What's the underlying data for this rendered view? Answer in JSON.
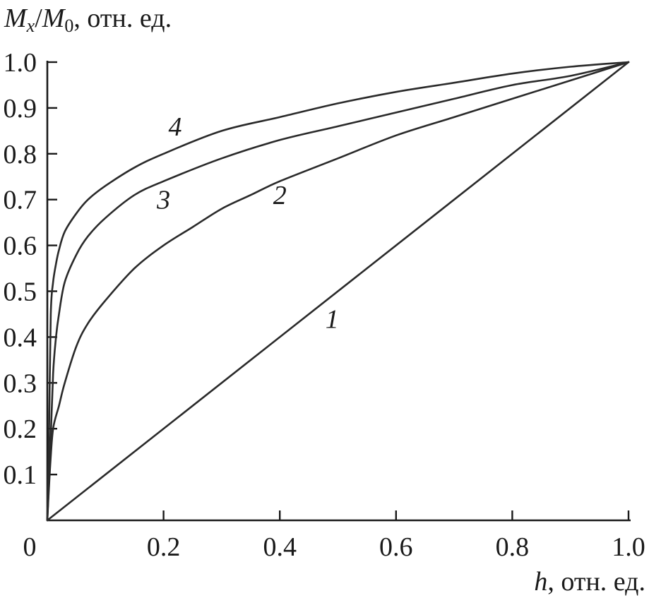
{
  "chart_data": {
    "type": "line",
    "xlabel_var": "h",
    "xlabel_unit": ", отн. ед.",
    "ylabel_var_main": "M",
    "ylabel_var_sub": "x",
    "ylabel_slash": "/",
    "ylabel_var2_main": "M",
    "ylabel_var2_sub": "0",
    "ylabel_unit": ", отн. ед.",
    "xlim": [
      0,
      1.0
    ],
    "ylim": [
      0,
      1.0
    ],
    "x_ticks": [
      {
        "value": 0,
        "label": "0"
      },
      {
        "value": 0.2,
        "label": "0.2"
      },
      {
        "value": 0.4,
        "label": "0.4"
      },
      {
        "value": 0.6,
        "label": "0.6"
      },
      {
        "value": 0.8,
        "label": "0.8"
      },
      {
        "value": 1.0,
        "label": "1.0"
      }
    ],
    "y_ticks": [
      {
        "value": 0.1,
        "label": "0.1"
      },
      {
        "value": 0.2,
        "label": "0.2"
      },
      {
        "value": 0.3,
        "label": "0.3"
      },
      {
        "value": 0.4,
        "label": "0.4"
      },
      {
        "value": 0.5,
        "label": "0.5"
      },
      {
        "value": 0.6,
        "label": "0.6"
      },
      {
        "value": 0.7,
        "label": "0.7"
      },
      {
        "value": 0.8,
        "label": "0.8"
      },
      {
        "value": 0.9,
        "label": "0.9"
      },
      {
        "value": 1.0,
        "label": "1.0"
      }
    ],
    "grid": false,
    "series": [
      {
        "label": "1",
        "label_pos": [
          0.49,
          0.42
        ],
        "x": [
          0,
          1.0
        ],
        "y": [
          0,
          1.0
        ]
      },
      {
        "label": "2",
        "label_pos": [
          0.4,
          0.69
        ],
        "x": [
          0.0,
          0.005,
          0.01,
          0.02,
          0.03,
          0.05,
          0.07,
          0.1,
          0.15,
          0.2,
          0.25,
          0.3,
          0.35,
          0.4,
          0.5,
          0.6,
          0.7,
          0.8,
          0.9,
          1.0
        ],
        "y": [
          0.0,
          0.12,
          0.2,
          0.25,
          0.3,
          0.38,
          0.43,
          0.48,
          0.55,
          0.6,
          0.64,
          0.68,
          0.71,
          0.74,
          0.79,
          0.84,
          0.88,
          0.92,
          0.96,
          1.0
        ]
      },
      {
        "label": "3",
        "label_pos": [
          0.2,
          0.68
        ],
        "x": [
          0.0,
          0.005,
          0.01,
          0.015,
          0.02,
          0.03,
          0.05,
          0.07,
          0.1,
          0.15,
          0.2,
          0.3,
          0.4,
          0.5,
          0.6,
          0.7,
          0.8,
          0.9,
          1.0
        ],
        "y": [
          0.0,
          0.15,
          0.32,
          0.4,
          0.45,
          0.52,
          0.58,
          0.62,
          0.66,
          0.71,
          0.74,
          0.79,
          0.83,
          0.86,
          0.89,
          0.92,
          0.95,
          0.97,
          1.0
        ]
      },
      {
        "label": "4",
        "label_pos": [
          0.22,
          0.84
        ],
        "x": [
          0.0,
          0.003,
          0.006,
          0.01,
          0.015,
          0.02,
          0.03,
          0.05,
          0.07,
          0.1,
          0.15,
          0.2,
          0.3,
          0.4,
          0.5,
          0.6,
          0.7,
          0.8,
          0.9,
          1.0
        ],
        "y": [
          0.0,
          0.2,
          0.45,
          0.52,
          0.56,
          0.59,
          0.63,
          0.67,
          0.7,
          0.73,
          0.77,
          0.8,
          0.85,
          0.88,
          0.91,
          0.935,
          0.955,
          0.975,
          0.99,
          1.0
        ]
      }
    ]
  }
}
